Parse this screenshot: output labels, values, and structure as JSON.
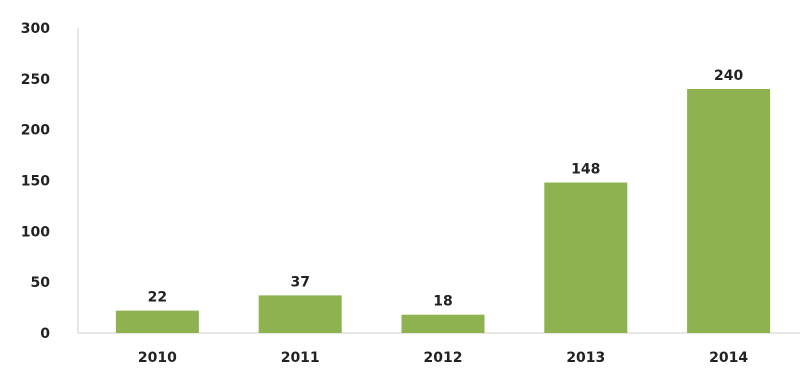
{
  "chart_data": {
    "type": "bar",
    "categories": [
      "2010",
      "2011",
      "2012",
      "2013",
      "2014"
    ],
    "values": [
      22,
      37,
      18,
      148,
      240
    ],
    "data_labels": [
      "22",
      "37",
      "18",
      "148",
      "240"
    ],
    "title": "",
    "xlabel": "",
    "ylabel": "",
    "ylim": [
      0,
      300
    ],
    "yticks": [
      "0",
      "50",
      "100",
      "150",
      "200",
      "250",
      "300"
    ],
    "grid": false,
    "bar_color": "#8db24f",
    "axis_color": "#cfcfcf"
  }
}
